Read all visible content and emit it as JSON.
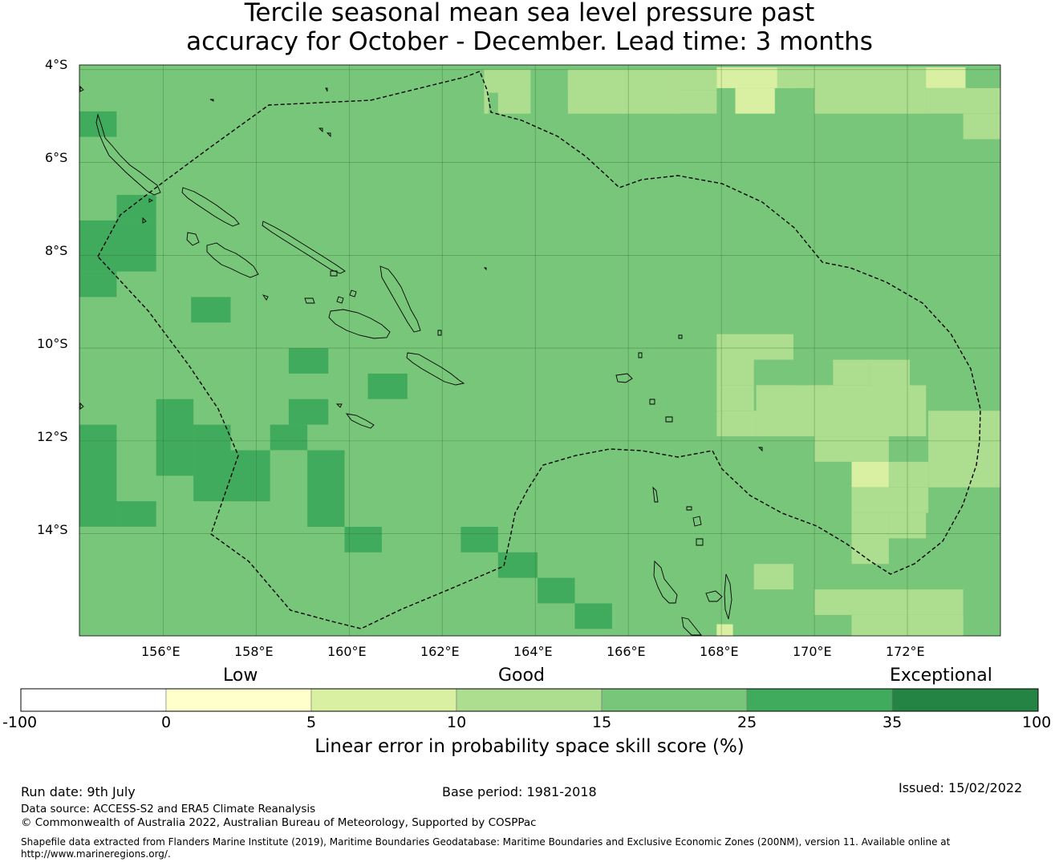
{
  "title": {
    "line1": "Tercile seasonal mean sea level pressure past",
    "line2": "accuracy for October - December. Lead time: 3 months"
  },
  "map": {
    "extent": {
      "lon_min": 154.2,
      "lon_max": 174.0,
      "lat_min": -16.2,
      "lat_max": -3.9
    },
    "lat_ticks": [
      "4°S",
      "6°S",
      "8°S",
      "10°S",
      "12°S",
      "14°S"
    ],
    "lat_values": [
      -4,
      -6,
      -8,
      -10,
      -12,
      -14
    ],
    "lon_ticks": [
      "156°E",
      "158°E",
      "160°E",
      "162°E",
      "164°E",
      "166°E",
      "168°E",
      "170°E",
      "172°E"
    ],
    "lon_values": [
      156,
      158,
      160,
      162,
      164,
      166,
      168,
      170,
      172
    ],
    "background_category": 4,
    "cells": [
      {
        "lon": 154.2,
        "lat": -4.9,
        "w": 0.8,
        "h": 0.55,
        "cat": 5
      },
      {
        "lon": 162.9,
        "lat": -4.0,
        "w": 1.0,
        "h": 0.95,
        "cat": 3
      },
      {
        "lon": 163.0,
        "lat": -4.5,
        "w": 0.2,
        "h": 0.45,
        "cat": 4
      },
      {
        "lon": 164.7,
        "lat": -4.0,
        "w": 2.4,
        "h": 0.95,
        "cat": 3
      },
      {
        "lon": 164.7,
        "lat": -4.0,
        "w": 2.4,
        "h": 0.45,
        "cat": 3
      },
      {
        "lon": 167.1,
        "lat": -4.0,
        "w": 0.8,
        "h": 0.45,
        "cat": 3
      },
      {
        "lon": 167.1,
        "lat": -4.45,
        "w": 0.8,
        "h": 0.5,
        "cat": 3
      },
      {
        "lon": 167.9,
        "lat": -3.95,
        "w": 1.65,
        "h": 0.45,
        "cat": 2
      },
      {
        "lon": 168.3,
        "lat": -4.4,
        "w": 0.85,
        "h": 0.55,
        "cat": 2
      },
      {
        "lon": 169.2,
        "lat": -3.95,
        "w": 0.8,
        "h": 0.45,
        "cat": 3
      },
      {
        "lon": 170.0,
        "lat": -3.95,
        "w": 2.4,
        "h": 1.0,
        "cat": 3
      },
      {
        "lon": 172.4,
        "lat": -3.95,
        "w": 0.85,
        "h": 0.45,
        "cat": 2
      },
      {
        "lon": 172.4,
        "lat": -4.4,
        "w": 1.6,
        "h": 0.55,
        "cat": 3
      },
      {
        "lon": 173.2,
        "lat": -4.95,
        "w": 0.8,
        "h": 0.55,
        "cat": 3
      },
      {
        "lon": 155.0,
        "lat": -6.7,
        "w": 0.85,
        "h": 0.55,
        "cat": 5
      },
      {
        "lon": 154.2,
        "lat": -7.25,
        "w": 1.65,
        "h": 1.1,
        "cat": 5
      },
      {
        "lon": 154.2,
        "lat": -8.35,
        "w": 0.8,
        "h": 0.55,
        "cat": 5
      },
      {
        "lon": 156.6,
        "lat": -8.9,
        "w": 0.85,
        "h": 0.55,
        "cat": 5
      },
      {
        "lon": 158.7,
        "lat": -10.0,
        "w": 0.85,
        "h": 0.55,
        "cat": 5
      },
      {
        "lon": 160.4,
        "lat": -10.55,
        "w": 0.85,
        "h": 0.55,
        "cat": 5
      },
      {
        "lon": 158.7,
        "lat": -11.1,
        "w": 0.85,
        "h": 0.55,
        "cat": 5
      },
      {
        "lon": 155.85,
        "lat": -11.1,
        "w": 0.8,
        "h": 1.65,
        "cat": 5
      },
      {
        "lon": 154.2,
        "lat": -11.65,
        "w": 0.8,
        "h": 2.2,
        "cat": 5
      },
      {
        "lon": 155.0,
        "lat": -13.3,
        "w": 0.85,
        "h": 0.55,
        "cat": 5
      },
      {
        "lon": 156.65,
        "lat": -11.65,
        "w": 0.8,
        "h": 1.65,
        "cat": 5
      },
      {
        "lon": 157.45,
        "lat": -12.2,
        "w": 0.85,
        "h": 1.1,
        "cat": 5
      },
      {
        "lon": 158.3,
        "lat": -11.65,
        "w": 0.8,
        "h": 0.55,
        "cat": 5
      },
      {
        "lon": 159.1,
        "lat": -12.2,
        "w": 0.8,
        "h": 1.65,
        "cat": 5
      },
      {
        "lon": 159.9,
        "lat": -13.85,
        "w": 0.8,
        "h": 0.55,
        "cat": 5
      },
      {
        "lon": 162.4,
        "lat": -13.85,
        "w": 0.8,
        "h": 0.55,
        "cat": 5
      },
      {
        "lon": 163.2,
        "lat": -14.4,
        "w": 0.85,
        "h": 0.55,
        "cat": 5
      },
      {
        "lon": 164.05,
        "lat": -14.95,
        "w": 0.8,
        "h": 0.55,
        "cat": 5
      },
      {
        "lon": 164.85,
        "lat": -15.5,
        "w": 0.8,
        "h": 0.55,
        "cat": 5
      },
      {
        "lon": 167.9,
        "lat": -9.7,
        "w": 1.65,
        "h": 1.1,
        "cat": 3
      },
      {
        "lon": 167.9,
        "lat": -10.8,
        "w": 0.8,
        "h": 0.55,
        "cat": 3
      },
      {
        "lon": 168.7,
        "lat": -10.25,
        "w": 0.85,
        "h": 0.55,
        "cat": 4
      },
      {
        "lon": 167.9,
        "lat": -11.35,
        "w": 0.85,
        "h": 0.55,
        "cat": 3
      },
      {
        "lon": 168.75,
        "lat": -10.8,
        "w": 1.65,
        "h": 1.1,
        "cat": 3
      },
      {
        "lon": 171.2,
        "lat": -10.25,
        "w": 0.85,
        "h": 1.1,
        "cat": 3
      },
      {
        "lon": 170.4,
        "lat": -10.25,
        "w": 0.8,
        "h": 0.55,
        "cat": 3
      },
      {
        "lon": 170.0,
        "lat": -10.8,
        "w": 2.4,
        "h": 1.1,
        "cat": 3
      },
      {
        "lon": 172.45,
        "lat": -11.35,
        "w": 1.55,
        "h": 1.65,
        "cat": 3
      },
      {
        "lon": 170.0,
        "lat": -11.9,
        "w": 1.6,
        "h": 0.55,
        "cat": 3
      },
      {
        "lon": 170.8,
        "lat": -12.45,
        "w": 0.8,
        "h": 0.55,
        "cat": 2
      },
      {
        "lon": 171.6,
        "lat": -12.45,
        "w": 0.85,
        "h": 0.55,
        "cat": 3
      },
      {
        "lon": 170.8,
        "lat": -13.0,
        "w": 1.65,
        "h": 0.55,
        "cat": 3
      },
      {
        "lon": 170.8,
        "lat": -13.55,
        "w": 0.8,
        "h": 1.1,
        "cat": 3
      },
      {
        "lon": 171.6,
        "lat": -13.55,
        "w": 0.8,
        "h": 0.55,
        "cat": 3
      },
      {
        "lon": 168.7,
        "lat": -14.65,
        "w": 0.85,
        "h": 0.55,
        "cat": 3
      },
      {
        "lon": 170.0,
        "lat": -15.2,
        "w": 3.2,
        "h": 0.55,
        "cat": 3
      },
      {
        "lon": 170.8,
        "lat": -15.75,
        "w": 2.4,
        "h": 0.45,
        "cat": 3
      },
      {
        "lon": 167.9,
        "lat": -15.95,
        "w": 0.35,
        "h": 0.25,
        "cat": 2
      }
    ]
  },
  "colorbar": {
    "boundaries": [
      "-100",
      "0",
      "5",
      "10",
      "15",
      "25",
      "35",
      "100"
    ],
    "colors": [
      "#ffffff",
      "#ffffcc",
      "#d9f0a3",
      "#addd8e",
      "#78c679",
      "#41ab5d",
      "#238443"
    ],
    "header_low": "Low",
    "header_good": "Good",
    "header_exceptional": "Exceptional",
    "label": "Linear error in probability space skill score (%)"
  },
  "footer": {
    "run_date": "Run date: 9th July",
    "base_period": "Base period: 1981-2018",
    "issued": "Issued: 15/02/2022",
    "data_source": "Data source: ACCESS-S2 and ERA5 Climate Reanalysis",
    "copyright": "© Commonwealth of Australia 2022, Australian Bureau of Meteorology, Supported by COSPPac",
    "shapefile_line1": "Shapefile data extracted from Flanders Marine Institute (2019), Maritime Boundaries Geodatabase: Maritime Boundaries and Exclusive Economic Zones (200NM), version 11. Available online at",
    "shapefile_line2": "http://www.marineregions.org/."
  }
}
